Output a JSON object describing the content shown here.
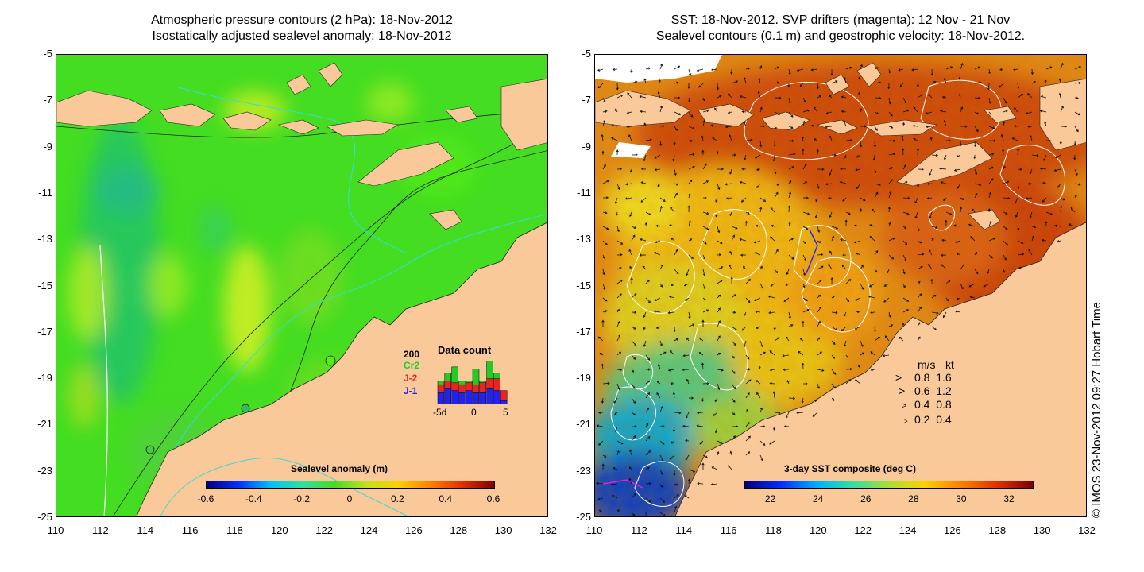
{
  "left_panel": {
    "title_line1": "Atmospheric pressure contours (2 hPa): 18-Nov-2012",
    "title_line2": "Isostatically adjusted sealevel anomaly: 18-Nov-2012",
    "colorbar_label": "Sealevel anomaly (m)",
    "colorbar_ticks": [
      "-0.6",
      "-0.4",
      "-0.2",
      "0",
      "0.2",
      "0.4",
      "0.6"
    ],
    "data_count": {
      "title": "Data count",
      "max_label": "200",
      "legend": [
        {
          "name": "Cr2",
          "color": "#22cc22"
        },
        {
          "name": "J-2",
          "color": "#ee2222"
        },
        {
          "name": "J-1",
          "color": "#2222ee"
        }
      ],
      "x_ticks": [
        "-5d",
        "0",
        "5"
      ],
      "bars": [
        {
          "day": -5,
          "j1": 30,
          "j2": 50,
          "cr2": 60
        },
        {
          "day": -4,
          "j1": 40,
          "j2": 60,
          "cr2": 80
        },
        {
          "day": -3,
          "j1": 35,
          "j2": 55,
          "cr2": 95
        },
        {
          "day": -2,
          "j1": 30,
          "j2": 50,
          "cr2": 60
        },
        {
          "day": -1,
          "j1": 35,
          "j2": 55,
          "cr2": 60
        },
        {
          "day": 0,
          "j1": 30,
          "j2": 50,
          "cr2": 90
        },
        {
          "day": 1,
          "j1": 30,
          "j2": 55,
          "cr2": 60
        },
        {
          "day": 2,
          "j1": 40,
          "j2": 65,
          "cr2": 110
        },
        {
          "day": 3,
          "j1": 35,
          "j2": 65,
          "cr2": 80
        },
        {
          "day": 4,
          "j1": 10,
          "j2": 35,
          "cr2": 35
        }
      ]
    }
  },
  "right_panel": {
    "title_line1": "SST: 18-Nov-2012. SVP drifters (magenta): 12 Nov - 21 Nov",
    "title_line2": "Sealevel contours (0.1 m) and geostrophic velocity: 18-Nov-2012.",
    "colorbar_label": "3-day SST composite (deg C)",
    "colorbar_ticks": [
      "22",
      "24",
      "26",
      "28",
      "30",
      "32"
    ],
    "speed_legend": {
      "header_ms": "m/s",
      "header_kt": "kt",
      "rows": [
        {
          "ms": "0.8",
          "kt": "1.6"
        },
        {
          "ms": "0.6",
          "kt": "1.2"
        },
        {
          "ms": "0.4",
          "kt": "0.8"
        },
        {
          "ms": "0.2",
          "kt": "0.4"
        }
      ]
    },
    "side_label": "© IMOS 23-Nov-2012 09:27 Hobart Time"
  },
  "axes": {
    "lat_ticks": [
      "-5",
      "-7",
      "-9",
      "-11",
      "-13",
      "-15",
      "-17",
      "-19",
      "-21",
      "-23",
      "-25"
    ],
    "lon_ticks": [
      "110",
      "112",
      "114",
      "116",
      "118",
      "120",
      "122",
      "124",
      "126",
      "128",
      "130",
      "132"
    ]
  },
  "colors": {
    "land": "#f9c99a",
    "sla_base": "#44dd22",
    "sst_base": "#e08a18",
    "contour_cyan": "#33dddd"
  }
}
